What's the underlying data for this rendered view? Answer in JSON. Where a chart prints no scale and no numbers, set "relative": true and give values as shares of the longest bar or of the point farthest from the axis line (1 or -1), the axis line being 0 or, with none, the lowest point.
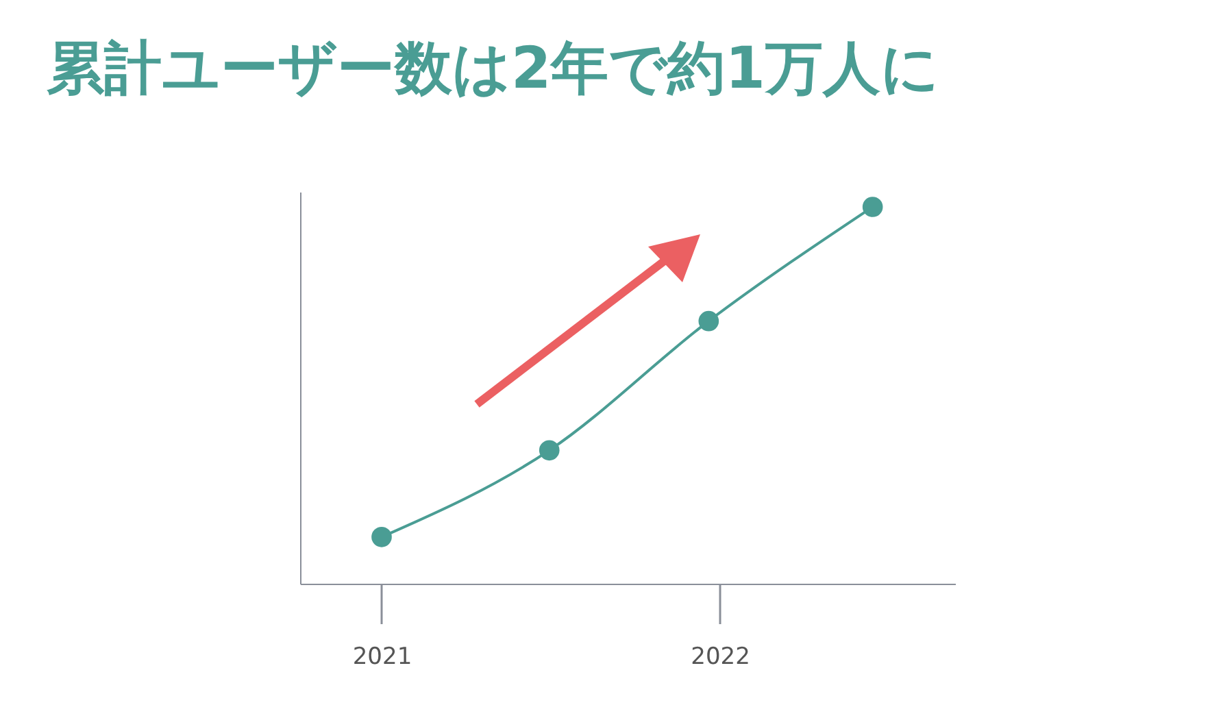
{
  "chart_data": {
    "type": "line",
    "title": "累計ユーザー数は2年で約1万人に",
    "x": [
      "2021-01",
      "2021-07",
      "2021-12-20",
      "2022-06-15"
    ],
    "series": [
      {
        "color": "#4a9d94",
        "values": [
          0.124,
          0.354,
          0.697,
          1
        ]
      }
    ],
    "relative": true,
    "xlim": [
      "2020-10-05",
      "2022-09-12"
    ],
    "xticks": [
      "2021",
      "2022"
    ],
    "marker": "circle"
  }
}
